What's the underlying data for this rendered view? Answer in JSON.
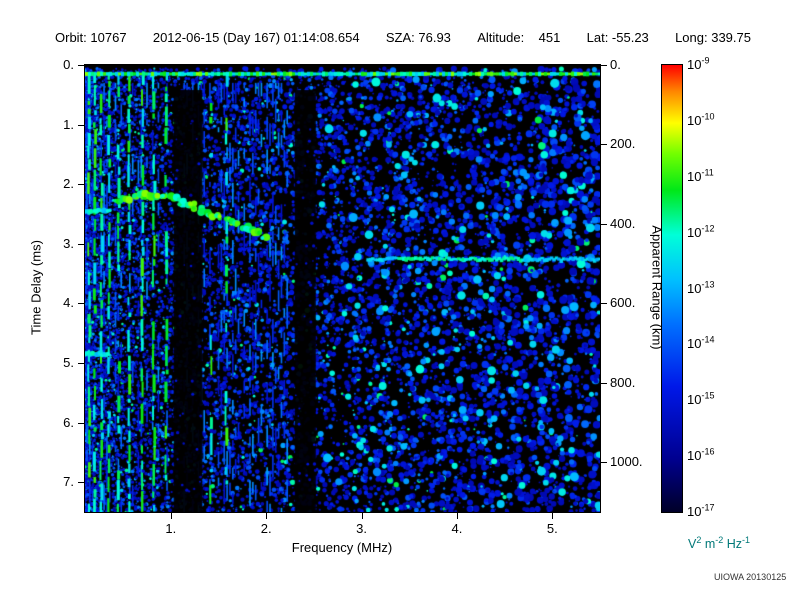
{
  "header": {
    "orbit": "Orbit: 10767",
    "datetime": "2012-06-15 (Day 167) 01:14:08.654",
    "sza": "SZA: 76.93",
    "altitude": "Altitude:    451",
    "lat": "Lat: -55.23",
    "long": "Long: 339.75"
  },
  "chart_data": {
    "type": "heatmap",
    "xlabel": "Frequency (MHz)",
    "ylabel": "Time Delay (ms)",
    "y2label": "Apparent Range (km)",
    "xlim": [
      0.1,
      5.5
    ],
    "ylim": [
      0,
      7.5
    ],
    "y2lim_km": [
      0,
      1125
    ],
    "x_ticks": [
      {
        "v": 1,
        "label": "1."
      },
      {
        "v": 2,
        "label": "2."
      },
      {
        "v": 3,
        "label": "3."
      },
      {
        "v": 4,
        "label": "4."
      },
      {
        "v": 5,
        "label": "5."
      }
    ],
    "y_ticks": [
      {
        "v": 0,
        "label": "0."
      },
      {
        "v": 1,
        "label": "1."
      },
      {
        "v": 2,
        "label": "2."
      },
      {
        "v": 3,
        "label": "3."
      },
      {
        "v": 4,
        "label": "4."
      },
      {
        "v": 5,
        "label": "5."
      },
      {
        "v": 6,
        "label": "6."
      },
      {
        "v": 7,
        "label": "7."
      }
    ],
    "y2_ticks": [
      {
        "v": 0,
        "label": "0."
      },
      {
        "v": 200,
        "label": "200."
      },
      {
        "v": 400,
        "label": "400."
      },
      {
        "v": 600,
        "label": "600."
      },
      {
        "v": 800,
        "label": "800."
      },
      {
        "v": 1000,
        "label": "1000."
      }
    ],
    "colormap": [
      [
        0.0,
        "#000028"
      ],
      [
        0.12,
        "#000090"
      ],
      [
        0.28,
        "#0018E8"
      ],
      [
        0.42,
        "#0070FF"
      ],
      [
        0.52,
        "#00C0FF"
      ],
      [
        0.62,
        "#00FFD8"
      ],
      [
        0.72,
        "#00E818"
      ],
      [
        0.8,
        "#70FF00"
      ],
      [
        0.87,
        "#FFFF00"
      ],
      [
        0.94,
        "#FF8800"
      ],
      [
        1.0,
        "#FF0000"
      ]
    ],
    "colorbar": {
      "tick_base": "10",
      "tick_exponents": [
        "-9",
        "-10",
        "-11",
        "-12",
        "-13",
        "-14",
        "-15",
        "-16",
        "-17"
      ],
      "unit_parts": [
        {
          "t": "V"
        },
        {
          "s": "2"
        },
        {
          "t": " m"
        },
        {
          "s": "-2"
        },
        {
          "t": " Hz"
        },
        {
          "s": "-1"
        }
      ],
      "unit_color": "#007878"
    },
    "features": {
      "seed": 20130125,
      "speckle_count": 13000,
      "left_bias": 2.0,
      "top_gap_ms": 0.06,
      "transmit_band_ms": 0.15,
      "dark_bands_mhz": [
        [
          1.03,
          1.33
        ],
        [
          2.3,
          2.52
        ]
      ],
      "harmonic_lines_mhz": [
        0.14,
        0.2,
        0.27,
        0.35,
        0.45,
        0.56,
        0.7,
        0.82,
        0.95,
        1.42,
        1.58
      ],
      "ionosphere_trace": [
        [
          0.45,
          2.3
        ],
        [
          0.65,
          2.2
        ],
        [
          0.85,
          2.18
        ],
        [
          1.05,
          2.25
        ],
        [
          1.25,
          2.38
        ],
        [
          1.45,
          2.52
        ],
        [
          1.65,
          2.65
        ],
        [
          1.85,
          2.78
        ],
        [
          2.0,
          2.88
        ]
      ],
      "surface_echo": {
        "y_ms": 3.25,
        "x0_mhz": 3.05,
        "x1_mhz": 5.5
      },
      "left_segments": [
        {
          "y_ms": 2.45,
          "x0_mhz": 0.1,
          "x1_mhz": 0.38
        },
        {
          "y_ms": 4.85,
          "x0_mhz": 0.1,
          "x1_mhz": 0.34
        }
      ]
    }
  },
  "footer": {
    "credit": "UIOWA 20130125"
  }
}
